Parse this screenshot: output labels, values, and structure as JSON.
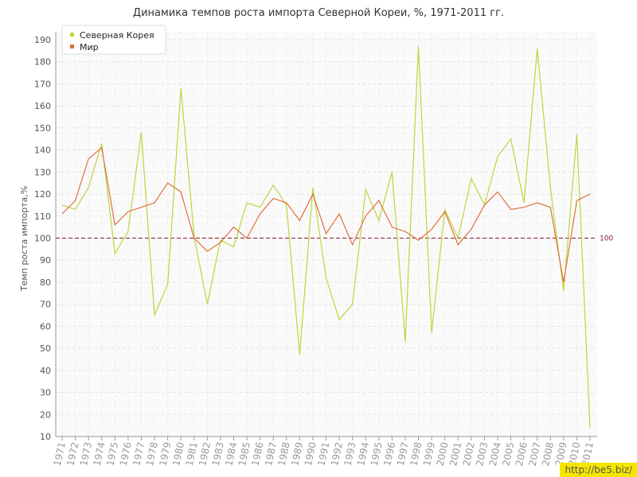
{
  "chart_data": {
    "type": "line",
    "title": "Динамика темпов роста импорта Северной Кореи, %, 1971-2011 гг.",
    "y_label": "Темп роста импорта,%",
    "categories": [
      "1971",
      "1972",
      "1973",
      "1974",
      "1975",
      "1976",
      "1977",
      "1978",
      "1979",
      "1980",
      "1981",
      "1982",
      "1983",
      "1984",
      "1985",
      "1986",
      "1987",
      "1988",
      "1989",
      "1990",
      "1991",
      "1992",
      "1993",
      "1994",
      "1995",
      "1996",
      "1997",
      "1998",
      "1999",
      "2000",
      "2001",
      "2002",
      "2003",
      "2004",
      "2005",
      "2006",
      "2007",
      "2008",
      "2009",
      "2010",
      "2011"
    ],
    "series": [
      {
        "name": "Северная Корея",
        "color": "#bcd63c",
        "values": [
          115,
          113,
          123,
          143,
          93,
          103,
          148,
          65,
          79,
          168,
          101,
          70,
          99,
          96,
          116,
          114,
          124,
          115,
          47,
          123,
          82,
          63,
          70,
          122,
          108,
          130,
          53,
          187,
          57,
          113,
          100,
          127,
          115,
          137,
          145,
          116,
          186,
          123,
          76,
          147,
          14
        ]
      },
      {
        "name": "Мир",
        "color": "#e0703c",
        "values": [
          111,
          117,
          136,
          141,
          106,
          112,
          114,
          116,
          125,
          121,
          100,
          94,
          98,
          105,
          100,
          111,
          118,
          116,
          108,
          120,
          102,
          111,
          97,
          110,
          117,
          105,
          103,
          99,
          104,
          112,
          97,
          104,
          115,
          121,
          113,
          114,
          116,
          114,
          80,
          117,
          120
        ]
      }
    ],
    "ylim": [
      10,
      190
    ],
    "yticks": [
      10,
      20,
      30,
      40,
      50,
      60,
      70,
      80,
      90,
      100,
      110,
      120,
      130,
      140,
      150,
      160,
      170,
      180,
      190
    ],
    "reference_line": 100,
    "reference_color": "#8b1a2a",
    "grid": true,
    "legend": "top-left"
  },
  "watermark": "http://be5.biz/"
}
